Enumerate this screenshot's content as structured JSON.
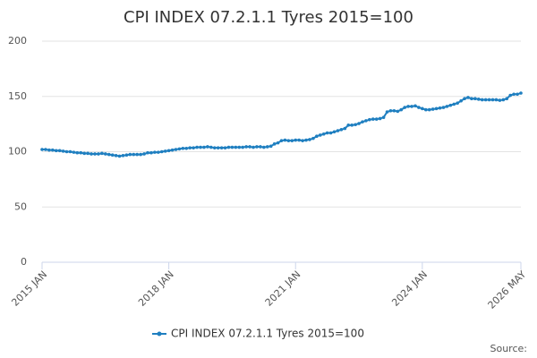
{
  "chart_data": {
    "type": "line",
    "title": "CPI INDEX 07.2.1.1 Tyres 2015=100",
    "categories": [
      "2015 JAN",
      null,
      null,
      null,
      null,
      null,
      null,
      null,
      null,
      null,
      null,
      null,
      null,
      null,
      null,
      null,
      null,
      null,
      null,
      null,
      null,
      null,
      null,
      null,
      null,
      null,
      null,
      null,
      null,
      null,
      null,
      null,
      null,
      null,
      null,
      null,
      "2018 JAN",
      null,
      null,
      null,
      null,
      null,
      null,
      null,
      null,
      null,
      null,
      null,
      null,
      null,
      null,
      null,
      null,
      null,
      null,
      null,
      null,
      null,
      null,
      null,
      null,
      null,
      null,
      null,
      null,
      null,
      null,
      null,
      null,
      null,
      null,
      null,
      "2021 JAN",
      null,
      null,
      null,
      null,
      null,
      null,
      null,
      null,
      null,
      null,
      null,
      null,
      null,
      null,
      null,
      null,
      null,
      null,
      null,
      null,
      null,
      null,
      null,
      null,
      null,
      null,
      null,
      null,
      null,
      null,
      null,
      null,
      null,
      null,
      null,
      "2024 JAN",
      null,
      null,
      null,
      null,
      null,
      null,
      null,
      null,
      null,
      null,
      null,
      null,
      null,
      null,
      null,
      null,
      null,
      null,
      null,
      null,
      null,
      null,
      null,
      null,
      null,
      null,
      null,
      "2026 MAY"
    ],
    "series": [
      {
        "name": "CPI INDEX 07.2.1.1 Tyres 2015=100",
        "color": "#1f7fc0",
        "values": [
          102,
          102,
          101.5,
          101.5,
          101,
          101,
          100.5,
          100,
          100,
          99.5,
          99,
          99,
          98.5,
          98.5,
          98,
          98,
          98,
          98.5,
          98,
          97.5,
          97,
          96.5,
          96,
          96.5,
          97,
          97.5,
          97.5,
          97.5,
          97.5,
          98,
          99,
          99,
          99.5,
          99.5,
          100,
          100.5,
          101,
          101.5,
          102,
          102.5,
          103,
          103,
          103.5,
          103.5,
          104,
          104,
          104,
          104.5,
          104,
          103.5,
          103.5,
          103.5,
          103.5,
          104,
          104,
          104,
          104,
          104,
          104.5,
          104.5,
          104,
          104.5,
          104.5,
          104,
          104.5,
          105,
          107,
          108,
          110,
          110.5,
          110,
          110,
          110.5,
          110.5,
          110,
          110.5,
          111,
          112,
          114,
          115,
          116,
          117,
          117,
          118,
          119,
          120,
          121,
          124,
          124,
          124.5,
          125.5,
          127,
          128,
          129,
          129.5,
          129.5,
          130,
          131,
          136,
          137,
          137,
          136.5,
          138,
          140,
          141,
          141,
          141.5,
          140,
          139,
          138,
          138,
          138.5,
          139,
          139.5,
          140,
          141,
          142,
          143,
          144,
          146,
          148,
          149,
          148,
          148,
          147.5,
          147,
          147,
          147,
          147,
          147,
          146.5,
          147,
          148,
          151,
          152,
          152,
          153
        ]
      }
    ],
    "ylim": [
      0,
      200
    ],
    "yticks": [
      0,
      50,
      100,
      150,
      200
    ],
    "grid": true,
    "legend": "bottom",
    "source": "Source:"
  }
}
